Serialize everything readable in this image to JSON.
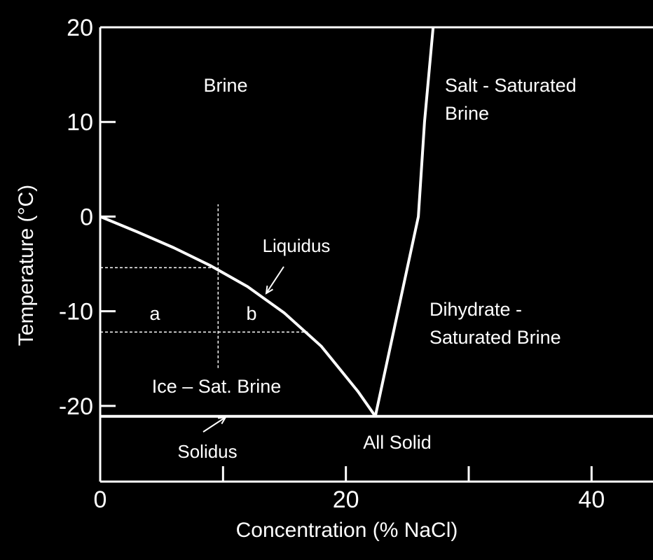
{
  "chart_data": {
    "type": "line",
    "xlabel": "Concentration (% NaCl)",
    "ylabel": "Temperature (°C)",
    "xlim": [
      0,
      45
    ],
    "ylim": [
      -28,
      20
    ],
    "x_ticks": [
      0,
      20,
      40
    ],
    "x_minor_ticks": [
      10,
      30
    ],
    "y_ticks": [
      20,
      10,
      0,
      -10,
      -20
    ],
    "grid": false,
    "colors": {
      "background": "#000000",
      "foreground": "#ffffff"
    },
    "series": [
      {
        "name": "Liquidus",
        "x": [
          0,
          3,
          6,
          9,
          12,
          15,
          18,
          21,
          22.4
        ],
        "y": [
          0,
          -1.6,
          -3.3,
          -5.2,
          -7.4,
          -10.2,
          -13.7,
          -18.5,
          -21.1
        ]
      },
      {
        "name": "",
        "x": [
          22.4,
          25.9,
          26.4,
          27.1
        ],
        "y": [
          -21.1,
          0,
          10,
          20
        ]
      },
      {
        "name": "Solidus",
        "x": [
          0,
          45
        ],
        "y": [
          -21.1,
          -21.1
        ]
      }
    ],
    "reference_lines": [
      {
        "kind": "vertical",
        "x": 9.6,
        "y_from": -16,
        "y_to": 1.3
      },
      {
        "kind": "horizontal",
        "y": -5.4,
        "x_from": 0,
        "x_to": 9.6
      },
      {
        "kind": "horizontal",
        "y": -12.2,
        "x_from": 0,
        "x_to": 16.9
      }
    ],
    "annotations": {
      "brine": "Brine",
      "salt_saturated_line1": "Salt - Saturated",
      "salt_saturated_line2": "Brine",
      "liquidus": "Liquidus",
      "a": "a",
      "b": "b",
      "dihydrate_line1": "Dihydrate -",
      "dihydrate_line2": "Saturated Brine",
      "ice_sat_brine": "Ice – Sat. Brine",
      "solidus": "Solidus",
      "all_solid": "All Solid"
    }
  }
}
